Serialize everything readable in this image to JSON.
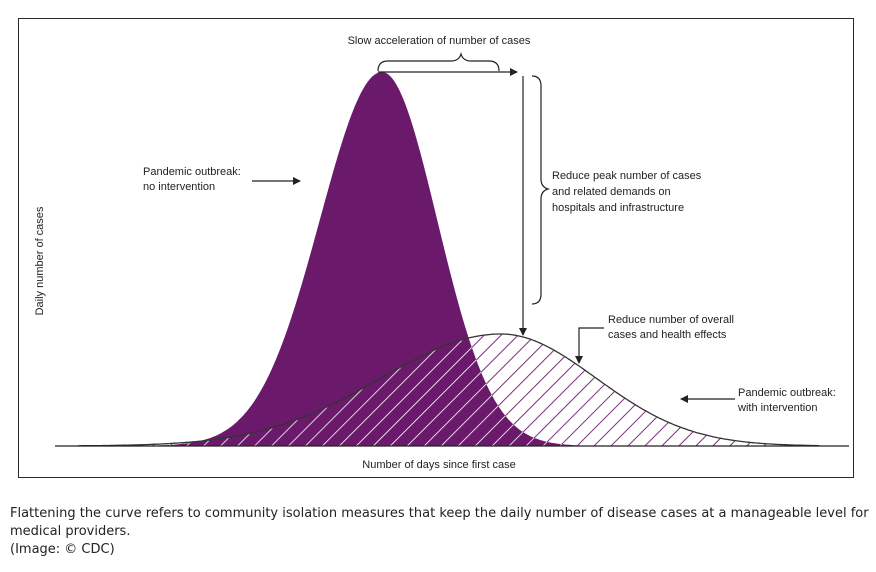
{
  "diagram": {
    "labels": {
      "slow_acceleration": "Slow acceleration of number of cases",
      "no_intervention": [
        "Pandemic outbreak:",
        "no intervention"
      ],
      "reduce_peak": [
        "Reduce peak number of cases",
        "and related demands on",
        "hospitals and infrastructure"
      ],
      "reduce_overall": [
        "Reduce number of overall",
        "cases and health effects"
      ],
      "with_intervention": [
        "Pandemic outbreak:",
        "with intervention"
      ],
      "x_axis": "Number of days since first case",
      "y_axis": "Daily number of cases"
    },
    "colors": {
      "no_intervention_fill": "#6b1a6b",
      "hatch": "#ffffff",
      "line": "#333333"
    }
  },
  "caption": {
    "text": "Flattening the curve refers to community isolation measures that keep the daily number of disease cases at a manageable level for medical providers.",
    "credit": "(Image: © CDC)"
  }
}
